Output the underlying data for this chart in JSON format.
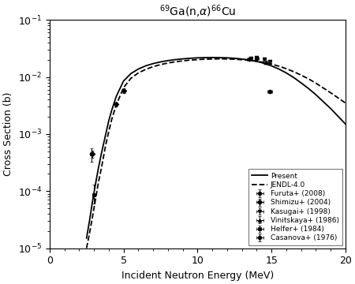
{
  "title": "$^{69}$Ga(n,$\\alpha$)$^{66}$Cu",
  "xlabel": "Incident Neutron Energy (MeV)",
  "ylabel": "Cross Section (b)",
  "xlim": [
    0,
    20
  ],
  "ylim": [
    1e-05,
    0.1
  ],
  "present_curve_x": [
    2.5,
    2.7,
    2.9,
    3.1,
    3.3,
    3.5,
    3.8,
    4.0,
    4.2,
    4.5,
    5.0,
    5.5,
    6.0,
    6.5,
    7.0,
    7.5,
    8.0,
    8.5,
    9.0,
    9.5,
    10.0,
    10.5,
    11.0,
    11.5,
    12.0,
    12.5,
    13.0,
    13.5,
    14.0,
    14.5,
    15.0,
    15.5,
    16.0,
    16.5,
    17.0,
    17.5,
    18.0,
    19.0,
    20.0
  ],
  "present_curve_y": [
    1.5e-05,
    3e-05,
    6.5e-05,
    0.00013,
    0.00025,
    0.00045,
    0.001,
    0.0017,
    0.0026,
    0.0045,
    0.0085,
    0.0115,
    0.0138,
    0.0157,
    0.0172,
    0.0184,
    0.0194,
    0.0202,
    0.0208,
    0.0213,
    0.0217,
    0.0219,
    0.022,
    0.0219,
    0.0217,
    0.0213,
    0.0207,
    0.0199,
    0.0188,
    0.0174,
    0.0157,
    0.0138,
    0.0118,
    0.0098,
    0.0079,
    0.0063,
    0.0049,
    0.0028,
    0.0015
  ],
  "jendl_curve_x": [
    2.5,
    2.7,
    2.9,
    3.1,
    3.3,
    3.5,
    3.8,
    4.0,
    4.2,
    4.5,
    5.0,
    5.5,
    6.0,
    6.5,
    7.0,
    7.5,
    8.0,
    8.5,
    9.0,
    9.5,
    10.0,
    10.5,
    11.0,
    11.5,
    12.0,
    12.5,
    13.0,
    13.5,
    14.0,
    14.5,
    15.0,
    15.5,
    16.0,
    16.5,
    17.0,
    17.5,
    18.0,
    19.0,
    20.0
  ],
  "jendl_curve_y": [
    1e-05,
    1.8e-05,
    3.5e-05,
    7e-05,
    0.00014,
    0.00025,
    0.00065,
    0.0011,
    0.0018,
    0.0032,
    0.0065,
    0.0095,
    0.0118,
    0.0136,
    0.0152,
    0.0165,
    0.0176,
    0.0185,
    0.0192,
    0.0198,
    0.0202,
    0.0205,
    0.0207,
    0.0208,
    0.0207,
    0.0205,
    0.0201,
    0.0196,
    0.0189,
    0.018,
    0.0168,
    0.0155,
    0.014,
    0.0124,
    0.0108,
    0.0093,
    0.0078,
    0.0053,
    0.0035
  ],
  "datasets": [
    {
      "label": "Furuta+ (2008)",
      "marker": "o",
      "x": [
        13.5,
        14.0,
        14.9
      ],
      "y": [
        0.0205,
        0.021,
        0.0055
      ],
      "yerr_low": [
        0.0012,
        0.0012,
        0.00035
      ],
      "yerr_high": [
        0.0012,
        0.0012,
        0.00035
      ],
      "xerr": [
        0.15,
        0.15,
        0.15
      ]
    },
    {
      "label": "Shimizu+ (2004)",
      "marker": "D",
      "x": [
        2.9,
        4.5,
        5.0
      ],
      "y": [
        0.00045,
        0.0033,
        0.0058
      ],
      "yerr_low": [
        6e-05,
        0.0003,
        0.0005
      ],
      "yerr_high": [
        6e-05,
        0.0003,
        0.0005
      ],
      "xerr": [
        0.05,
        0.05,
        0.05
      ]
    },
    {
      "label": "Kasugai+ (1998)",
      "marker": "v",
      "x": [
        13.6,
        14.0,
        14.5,
        14.9
      ],
      "y": [
        0.0212,
        0.0218,
        0.0205,
        0.0188
      ],
      "yerr_low": [
        0.0012,
        0.0012,
        0.0012,
        0.0012
      ],
      "yerr_high": [
        0.0012,
        0.0012,
        0.0012,
        0.0012
      ],
      "xerr": [
        0.1,
        0.1,
        0.1,
        0.1
      ]
    },
    {
      "label": "Vinitskaya+ (1986)",
      "marker": "^",
      "x": [
        14.6
      ],
      "y": [
        0.0182
      ],
      "yerr_low": [
        0.0012
      ],
      "yerr_high": [
        0.0012
      ],
      "xerr": [
        0.15
      ]
    },
    {
      "label": "Helfer+ (1984)",
      "marker": "s",
      "x": [
        3.0
      ],
      "y": [
        8.5e-05
      ],
      "yerr_low": [
        2.5e-05
      ],
      "yerr_high": [
        4.5e-05
      ],
      "xerr": [
        0.1
      ]
    },
    {
      "label": "Casanova+ (1976)",
      "marker": "o",
      "x": [
        2.85
      ],
      "y": [
        0.00045
      ],
      "yerr_low": [
        0.00012
      ],
      "yerr_high": [
        0.00012
      ],
      "xerr": [
        0.1
      ]
    }
  ],
  "bg_color": "#ffffff",
  "line_color": "#000000"
}
